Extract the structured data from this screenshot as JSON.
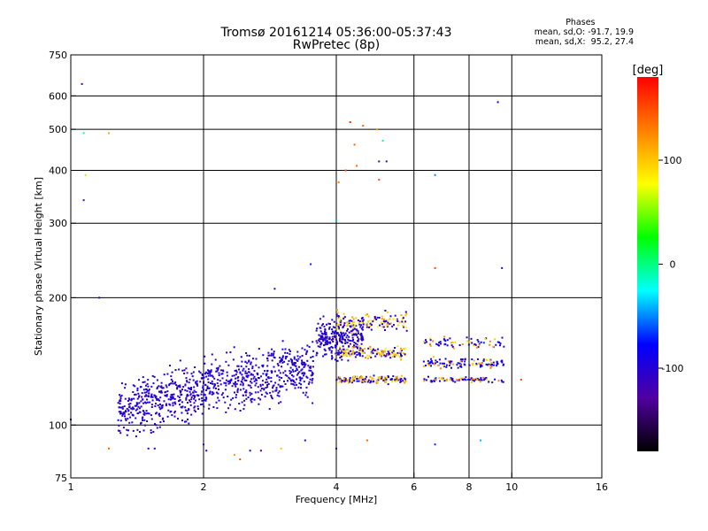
{
  "header": {
    "title_line1": "Tromsø 20161214 05:36:00-05:37:43",
    "title_line2": "RwPretec (8p)"
  },
  "phase_stats": {
    "heading": "Phases",
    "line_o": "mean, sd,O: -91.7, 19.9",
    "line_x": "mean, sd,X:  95.2, 27.4"
  },
  "chart_data": {
    "type": "scatter",
    "title": "Tromsø 20161214 05:36:00-05:37:43",
    "subtitle": "RwPretec (8p)",
    "xlabel": "Frequency [MHz]",
    "ylabel": "Stationary phase Virtual Height [km]",
    "x_scale": "log",
    "y_scale": "log",
    "xlim": [
      1,
      16
    ],
    "ylim": [
      75,
      750
    ],
    "x_ticks": [
      1,
      2,
      4,
      6,
      8,
      10,
      16
    ],
    "y_ticks": [
      75,
      100,
      200,
      300,
      400,
      500,
      600,
      750
    ],
    "grid": true,
    "colorbar": {
      "label": "[deg]",
      "range": [
        -180,
        180
      ],
      "ticks": [
        100,
        0,
        -100
      ],
      "colormap": [
        "#000000",
        "#5000a0",
        "#0000ff",
        "#00ffff",
        "#00ff00",
        "#ffff00",
        "#ff8000",
        "#ff0000"
      ]
    },
    "series": [
      {
        "color_by": "phase_deg",
        "points": [
          [
            1.0,
            103,
            -95
          ],
          [
            1.06,
            640,
            -120
          ],
          [
            1.07,
            490,
            -5
          ],
          [
            1.08,
            390,
            60
          ],
          [
            1.07,
            340,
            -125
          ],
          [
            1.16,
            200,
            -100
          ],
          [
            1.22,
            490,
            110
          ],
          [
            1.22,
            88,
            140
          ],
          [
            1.5,
            88,
            -95
          ],
          [
            1.55,
            88,
            -95
          ],
          [
            2.0,
            90,
            -120
          ],
          [
            2.03,
            87,
            -95
          ],
          [
            2.35,
            85,
            120
          ],
          [
            2.42,
            83,
            150
          ],
          [
            2.55,
            87,
            -90
          ],
          [
            2.7,
            87,
            -120
          ],
          [
            3.0,
            88,
            100
          ],
          [
            3.4,
            92,
            -100
          ],
          [
            4.0,
            88,
            -95
          ],
          [
            4.7,
            92,
            140
          ],
          [
            6.7,
            90,
            -70
          ],
          [
            8.5,
            92,
            -40
          ],
          [
            4.3,
            520,
            160
          ],
          [
            4.6,
            510,
            140
          ],
          [
            4.95,
            500,
            120
          ],
          [
            5.1,
            470,
            -10
          ],
          [
            5.0,
            420,
            -120
          ],
          [
            5.2,
            420,
            -120
          ],
          [
            4.4,
            460,
            140
          ],
          [
            4.2,
            400,
            150
          ],
          [
            4.05,
            375,
            130
          ],
          [
            4.45,
            410,
            140
          ],
          [
            5.0,
            380,
            150
          ],
          [
            9.3,
            580,
            -80
          ],
          [
            6.7,
            390,
            -50
          ],
          [
            4.0,
            305,
            -40
          ],
          [
            9.5,
            235,
            -110
          ],
          [
            6.7,
            235,
            150
          ],
          [
            3.5,
            240,
            -70
          ],
          [
            2.9,
            210,
            -95
          ],
          [
            10.5,
            128,
            150
          ],
          [
            7.6,
            128,
            160
          ]
        ]
      }
    ]
  }
}
